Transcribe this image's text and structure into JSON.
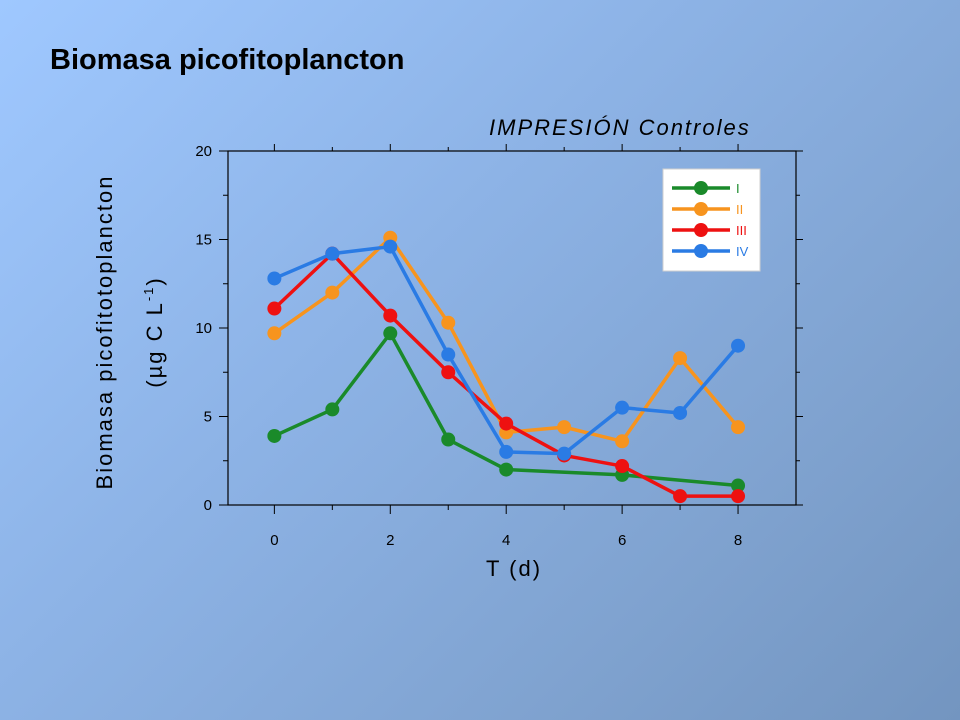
{
  "slide": {
    "title": "Biomasa picofitoplancton"
  },
  "chart_data": {
    "type": "line",
    "title": "IMPRESIÓN Controles",
    "xlabel": "T (d)",
    "ylabel_line1": "Biomasa picofitotoplancton",
    "ylabel_line2": "(µg C L",
    "ylabel_sup": "-1",
    "ylabel_close": ")",
    "xlim": [
      -0.8,
      9.0
    ],
    "ylim": [
      0,
      20
    ],
    "x_ticks": [
      0,
      2,
      4,
      6,
      8
    ],
    "y_ticks": [
      0,
      5,
      10,
      15,
      20
    ],
    "grid": false,
    "legend_position": "top-right",
    "series": [
      {
        "name": "I",
        "color": "#1a8a2a",
        "x": [
          0,
          1,
          2,
          3,
          4,
          6,
          8
        ],
        "y": [
          3.9,
          5.4,
          9.7,
          3.7,
          2.0,
          1.7,
          1.1
        ]
      },
      {
        "name": "II",
        "color": "#f7941e",
        "x": [
          0,
          1,
          2,
          3,
          4,
          5,
          6,
          7,
          8
        ],
        "y": [
          9.7,
          12.0,
          15.1,
          10.3,
          4.1,
          4.4,
          3.6,
          8.3,
          4.4
        ]
      },
      {
        "name": "III",
        "color": "#ee1111",
        "x": [
          0,
          1,
          2,
          3,
          4,
          5,
          6,
          7,
          8
        ],
        "y": [
          11.1,
          14.2,
          10.7,
          7.5,
          4.6,
          2.8,
          2.2,
          0.5,
          0.5
        ]
      },
      {
        "name": "IV",
        "color": "#2a7be4",
        "x": [
          0,
          1,
          2,
          3,
          4,
          5,
          6,
          7,
          8
        ],
        "y": [
          12.8,
          14.2,
          14.6,
          8.5,
          3.0,
          2.9,
          5.5,
          5.2,
          9.0
        ]
      }
    ]
  }
}
